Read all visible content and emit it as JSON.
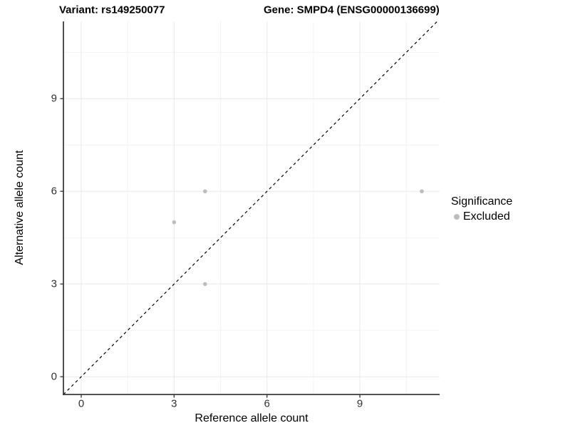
{
  "header": {
    "variant_title": "Variant: rs149250077",
    "gene_title": "Gene: SMPD4 (ENSG00000136699)"
  },
  "chart_data": {
    "type": "scatter",
    "title_left": "Variant: rs149250077",
    "title_right": "Gene: SMPD4 (ENSG00000136699)",
    "xlabel": "Reference allele count",
    "ylabel": "Alternative allele count",
    "xlim": [
      -0.575,
      11.575
    ],
    "ylim": [
      -0.575,
      11.5
    ],
    "x_ticks": [
      0,
      3,
      6,
      9
    ],
    "y_ticks": [
      0,
      3,
      6,
      9
    ],
    "x_minor_ticks": [
      1.5,
      4.5,
      7.5,
      10.5
    ],
    "y_minor_ticks": [
      1.5,
      4.5,
      7.5,
      10.5
    ],
    "grid": true,
    "series": [
      {
        "name": "Excluded",
        "points": [
          {
            "x": 3,
            "y": 5
          },
          {
            "x": 4,
            "y": 6
          },
          {
            "x": 4,
            "y": 3
          },
          {
            "x": 11,
            "y": 6
          }
        ],
        "color": "#bdbdbd"
      }
    ],
    "reference_line": {
      "slope": 1,
      "intercept": 0,
      "style": "dashed",
      "color": "#000000"
    },
    "legend": {
      "position": "right",
      "title": "Significance",
      "items": [
        {
          "label": "Excluded",
          "color": "#bdbdbd"
        }
      ]
    },
    "colors": {
      "point": "#bdbdbd",
      "axis_line": "#3c3c3c",
      "major_grid": "#e8e8e8",
      "minor_grid": "#f2f2f2",
      "tick_text": "#333333",
      "background": "#ffffff"
    }
  }
}
